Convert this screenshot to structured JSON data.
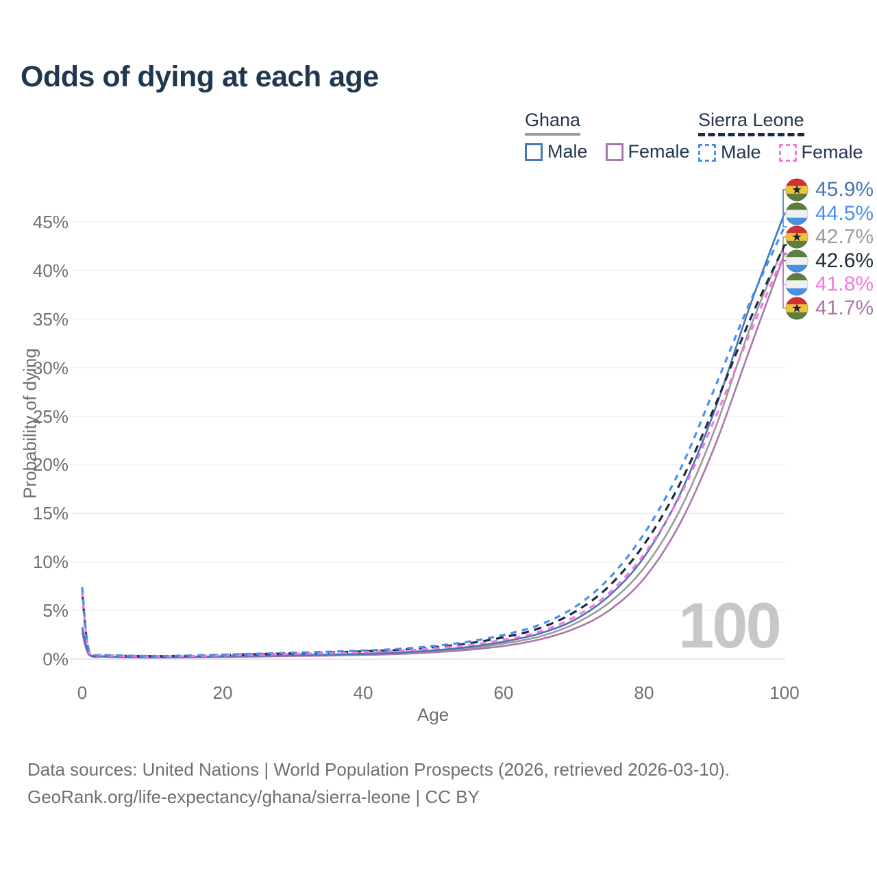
{
  "title": "Odds of dying at each age",
  "watermark": "100",
  "colors": {
    "title_text": "#21374f",
    "axis_text": "#6f6f6f",
    "gridline": "#ececec",
    "baseline": "#dedede",
    "watermark": "#c7c7c7",
    "ghana_male": "#4576b5",
    "ghana_female": "#a877ad",
    "ghana_total": "#9b9b9b",
    "sierra_leone_male": "#4b8ef0",
    "sierra_leone_female": "#f57ae0",
    "sierra_leone_total": "#1b2b40"
  },
  "legend": {
    "groups": [
      {
        "title": "Ghana",
        "line_style": "solid",
        "underline_color": "#9b9b9b",
        "items": [
          {
            "label": "Male",
            "color": "#4576b5",
            "dashed": false
          },
          {
            "label": "Female",
            "color": "#a877ad",
            "dashed": false
          }
        ]
      },
      {
        "title": "Sierra Leone",
        "line_style": "dashed",
        "underline_color": "#1b2b40",
        "items": [
          {
            "label": "Male",
            "color": "#4b8ef0",
            "dashed": true
          },
          {
            "label": "Female",
            "color": "#f57ae0",
            "dashed": true
          }
        ]
      }
    ]
  },
  "y_axis": {
    "label": "Probability of dying",
    "ticks": [
      {
        "value": 0,
        "label": "0%"
      },
      {
        "value": 5,
        "label": "5%"
      },
      {
        "value": 10,
        "label": "10%"
      },
      {
        "value": 15,
        "label": "15%"
      },
      {
        "value": 20,
        "label": "20%"
      },
      {
        "value": 25,
        "label": "25%"
      },
      {
        "value": 30,
        "label": "30%"
      },
      {
        "value": 35,
        "label": "35%"
      },
      {
        "value": 40,
        "label": "40%"
      },
      {
        "value": 45,
        "label": "45%"
      }
    ]
  },
  "x_axis": {
    "label": "Age",
    "ticks": [
      {
        "value": 0,
        "label": "0"
      },
      {
        "value": 20,
        "label": "20"
      },
      {
        "value": 40,
        "label": "40"
      },
      {
        "value": 60,
        "label": "60"
      },
      {
        "value": 80,
        "label": "80"
      },
      {
        "value": 100,
        "label": "100"
      }
    ]
  },
  "flags": {
    "Ghana": {
      "stripes": [
        "#d23131",
        "#f2c238",
        "#5d7e40"
      ],
      "star": "#1f2430"
    },
    "Sierra Leone": {
      "stripes": [
        "#5d7e40",
        "#f0f0f0",
        "#4a90e2"
      ],
      "star": null
    }
  },
  "footer": {
    "line1": "Data sources: United Nations | World Population Prospects (2026, retrieved 2026-03-10).",
    "line2": "GeoRank.org/life-expectancy/ghana/sierra-leone | CC BY"
  },
  "chart_data": {
    "type": "line",
    "title": "Odds of dying at each age",
    "xlabel": "Age",
    "ylabel": "Probability of dying",
    "xlim": [
      0,
      100
    ],
    "ylim": [
      0,
      45
    ],
    "grid": true,
    "legend_position": "top-right",
    "y_unit": "%",
    "series": [
      {
        "name": "Ghana Total",
        "country": "Ghana",
        "sex": "Both",
        "color": "#9b9b9b",
        "dash": null,
        "end_value": 42.7,
        "end_label": "42.7%",
        "points": [
          [
            0,
            3.0
          ],
          [
            1,
            0.45
          ],
          [
            3,
            0.28
          ],
          [
            5,
            0.22
          ],
          [
            10,
            0.18
          ],
          [
            15,
            0.21
          ],
          [
            20,
            0.26
          ],
          [
            25,
            0.31
          ],
          [
            30,
            0.36
          ],
          [
            35,
            0.41
          ],
          [
            40,
            0.48
          ],
          [
            45,
            0.6
          ],
          [
            50,
            0.8
          ],
          [
            55,
            1.1
          ],
          [
            60,
            1.6
          ],
          [
            65,
            2.3
          ],
          [
            70,
            3.6
          ],
          [
            75,
            5.8
          ],
          [
            80,
            9.4
          ],
          [
            85,
            15.2
          ],
          [
            90,
            23.5
          ],
          [
            95,
            33.9
          ],
          [
            100,
            42.7
          ]
        ]
      },
      {
        "name": "Ghana Female",
        "country": "Ghana",
        "sex": "Female",
        "color": "#a877ad",
        "dash": null,
        "end_value": 41.7,
        "end_label": "41.7%",
        "points": [
          [
            0,
            2.7
          ],
          [
            1,
            0.4
          ],
          [
            3,
            0.24
          ],
          [
            5,
            0.2
          ],
          [
            10,
            0.16
          ],
          [
            15,
            0.18
          ],
          [
            20,
            0.22
          ],
          [
            25,
            0.26
          ],
          [
            30,
            0.31
          ],
          [
            35,
            0.36
          ],
          [
            40,
            0.42
          ],
          [
            45,
            0.52
          ],
          [
            50,
            0.7
          ],
          [
            55,
            0.95
          ],
          [
            60,
            1.35
          ],
          [
            65,
            2.0
          ],
          [
            70,
            3.1
          ],
          [
            75,
            5.0
          ],
          [
            80,
            8.3
          ],
          [
            85,
            13.8
          ],
          [
            90,
            21.8
          ],
          [
            95,
            31.8
          ],
          [
            100,
            41.7
          ]
        ]
      },
      {
        "name": "Ghana Male",
        "country": "Ghana",
        "sex": "Male",
        "color": "#4576b5",
        "dash": null,
        "end_value": 45.9,
        "end_label": "45.9%",
        "points": [
          [
            0,
            3.3
          ],
          [
            1,
            0.5
          ],
          [
            3,
            0.3
          ],
          [
            5,
            0.25
          ],
          [
            10,
            0.2
          ],
          [
            15,
            0.24
          ],
          [
            20,
            0.3
          ],
          [
            25,
            0.36
          ],
          [
            30,
            0.42
          ],
          [
            35,
            0.47
          ],
          [
            40,
            0.55
          ],
          [
            45,
            0.68
          ],
          [
            50,
            0.9
          ],
          [
            55,
            1.25
          ],
          [
            60,
            1.8
          ],
          [
            65,
            2.6
          ],
          [
            70,
            4.0
          ],
          [
            75,
            6.5
          ],
          [
            80,
            10.5
          ],
          [
            85,
            16.8
          ],
          [
            90,
            25.5
          ],
          [
            95,
            36.2
          ],
          [
            100,
            45.9
          ]
        ]
      },
      {
        "name": "Sierra Leone Total",
        "country": "Sierra Leone",
        "sex": "Both",
        "color": "#1b2b40",
        "dash": "11 8",
        "end_value": 42.6,
        "end_label": "42.6%",
        "points": [
          [
            0,
            6.8
          ],
          [
            1,
            0.7
          ],
          [
            3,
            0.42
          ],
          [
            5,
            0.35
          ],
          [
            10,
            0.3
          ],
          [
            15,
            0.34
          ],
          [
            20,
            0.42
          ],
          [
            25,
            0.51
          ],
          [
            30,
            0.6
          ],
          [
            35,
            0.69
          ],
          [
            40,
            0.8
          ],
          [
            45,
            0.95
          ],
          [
            50,
            1.22
          ],
          [
            55,
            1.62
          ],
          [
            60,
            2.25
          ],
          [
            65,
            3.15
          ],
          [
            70,
            4.8
          ],
          [
            75,
            7.5
          ],
          [
            80,
            11.8
          ],
          [
            85,
            17.9
          ],
          [
            90,
            25.9
          ],
          [
            95,
            34.8
          ],
          [
            100,
            42.6
          ]
        ]
      },
      {
        "name": "Sierra Leone Female",
        "country": "Sierra Leone",
        "sex": "Female",
        "color": "#f57ae0",
        "dash": "9 8",
        "end_value": 41.8,
        "end_label": "41.8%",
        "points": [
          [
            0,
            7.0
          ],
          [
            1,
            0.65
          ],
          [
            3,
            0.4
          ],
          [
            5,
            0.33
          ],
          [
            10,
            0.28
          ],
          [
            15,
            0.31
          ],
          [
            20,
            0.38
          ],
          [
            25,
            0.46
          ],
          [
            30,
            0.54
          ],
          [
            35,
            0.62
          ],
          [
            40,
            0.72
          ],
          [
            45,
            0.86
          ],
          [
            50,
            1.1
          ],
          [
            55,
            1.45
          ],
          [
            60,
            2.0
          ],
          [
            65,
            2.8
          ],
          [
            70,
            4.3
          ],
          [
            75,
            6.8
          ],
          [
            80,
            10.8
          ],
          [
            85,
            16.6
          ],
          [
            90,
            24.6
          ],
          [
            95,
            33.4
          ],
          [
            100,
            41.8
          ]
        ]
      },
      {
        "name": "Sierra Leone Male",
        "country": "Sierra Leone",
        "sex": "Male",
        "color": "#4b8ef0",
        "dash": "9 8",
        "end_value": 44.5,
        "end_label": "44.5%",
        "points": [
          [
            0,
            7.4
          ],
          [
            1,
            0.75
          ],
          [
            3,
            0.45
          ],
          [
            5,
            0.38
          ],
          [
            10,
            0.32
          ],
          [
            15,
            0.37
          ],
          [
            20,
            0.46
          ],
          [
            25,
            0.56
          ],
          [
            30,
            0.66
          ],
          [
            35,
            0.76
          ],
          [
            40,
            0.88
          ],
          [
            45,
            1.05
          ],
          [
            50,
            1.35
          ],
          [
            55,
            1.8
          ],
          [
            60,
            2.5
          ],
          [
            65,
            3.5
          ],
          [
            70,
            5.3
          ],
          [
            75,
            8.3
          ],
          [
            80,
            12.9
          ],
          [
            85,
            19.3
          ],
          [
            90,
            27.8
          ],
          [
            95,
            36.6
          ],
          [
            100,
            44.5
          ]
        ]
      }
    ]
  }
}
